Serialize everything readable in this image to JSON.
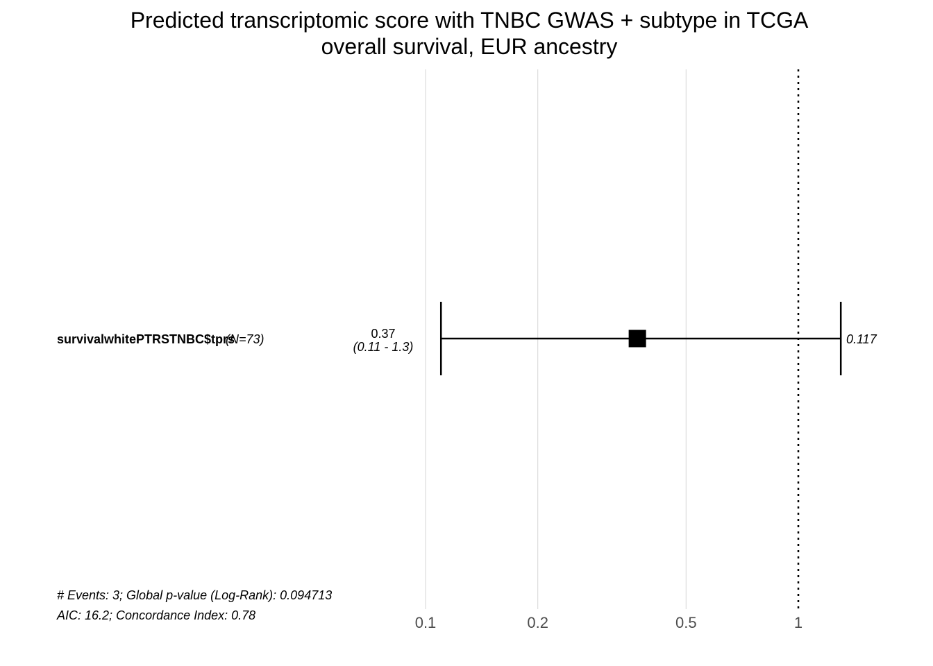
{
  "chart_data": {
    "type": "forest",
    "title": [
      "Predicted transcriptomic score with TNBC GWAS + subtype in TCGA",
      "overall survival, EUR ancestry"
    ],
    "x_scale": "log",
    "xlim": [
      0.1,
      1.3
    ],
    "x_ticks": [
      0.1,
      0.2,
      0.5,
      1
    ],
    "x_tick_labels": [
      "0.1",
      "0.2",
      "0.5",
      "1"
    ],
    "reference_line": 1,
    "grid": "vertical",
    "rows": [
      {
        "variable": "survivalwhitePTRSTNBC$tprs",
        "n_label": "(N=73)",
        "estimate": 0.37,
        "ci_low": 0.11,
        "ci_high": 1.3,
        "estimate_label": "0.37",
        "ci_label": "(0.11 - 1.3)",
        "p_label": "0.117"
      }
    ],
    "footnotes": [
      "# Events: 3; Global p-value (Log-Rank): 0.094713",
      "AIC: 16.2; Concordance Index: 0.78"
    ]
  }
}
